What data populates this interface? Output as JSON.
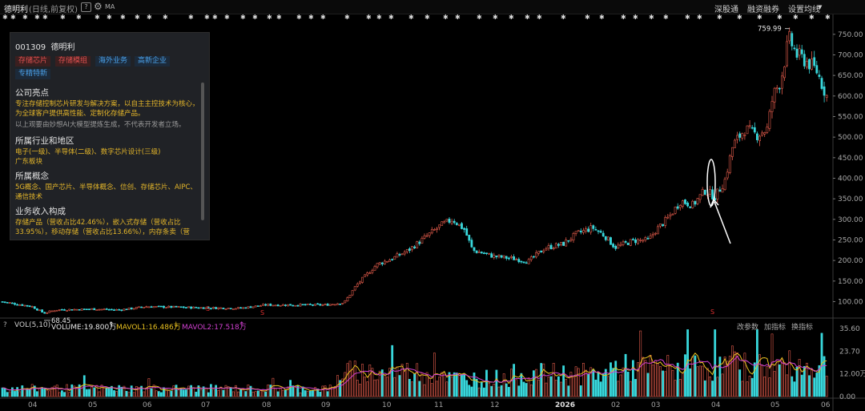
{
  "header": {
    "title": "德明利",
    "subtitle": "(日线,前复权)",
    "help_label": "?",
    "gear_icon": "gear-icon",
    "ma_label": "MA",
    "menu": [
      "深股通",
      "融资融券",
      "设置均线"
    ]
  },
  "panel": {
    "code": "001309",
    "name": "德明利",
    "tags": [
      {
        "label": "存储芯片",
        "color": "red"
      },
      {
        "label": "存储模组",
        "color": "red"
      },
      {
        "label": "海外业务",
        "color": "blue"
      },
      {
        "label": "高新企业",
        "color": "blue"
      },
      {
        "label": "专精特新",
        "color": "blue"
      }
    ],
    "highlight_title": "公司亮点",
    "highlight_text": "专注存储控制芯片研发与解决方案，以自主主控技术为核心，为全球客户提供高性能、定制化存储产品。",
    "disclaimer": "以上观要由妙想AI大模型提炼生成，不代表开发者立场。",
    "industry_title": "所属行业和地区",
    "industry_text": "电子(一级)、半导体(二级)、数字芯片设计(三级)",
    "region_text": "广东板块",
    "concept_title": "所属概念",
    "concept_text": "5G概念、国产芯片、半导体概念、信创、存储芯片、AIPC、通信技术",
    "revenue_title": "业务收入构成",
    "revenue_text": "存储产品（营收占比42.46%），嵌入式存储（营收占比33.95%），移动存储（营收占比13.66%），内存条卖（营"
  },
  "price_axis": [
    "750.00",
    "700.00",
    "650.00",
    "600.00",
    "550.00",
    "500.00",
    "450.00",
    "400.00",
    "350.00",
    "300.00",
    "250.00",
    "200.00",
    "150.00",
    "100.00"
  ],
  "annotations": {
    "high": "759.99",
    "low": "68.45",
    "s_marker": "S"
  },
  "volume": {
    "indicator": "VOL(5,10)",
    "volume": "VOLUME:19.800万",
    "up_arrow": "↑",
    "mavol1": "MAVOL1:16.486万",
    "down_arrow": "↓",
    "mavol2": "MAVOL2:17.518万",
    "up_arrow2": "↑",
    "actions": [
      "改参数",
      "加指标",
      "换指标"
    ],
    "axis": [
      "35.60",
      "23.70",
      "12.00万",
      "0.00"
    ]
  },
  "x_axis": [
    "04",
    "05",
    "06",
    "07",
    "08",
    "09",
    "10",
    "11",
    "12",
    "2026",
    "02",
    "03",
    "04",
    "05",
    "06"
  ],
  "colors": {
    "up": "#e05a4a",
    "down": "#38d8dc",
    "ma_yellow": "#e8c020",
    "ma_purple": "#d040d0",
    "arrow": "#ffffff"
  },
  "chart_data": {
    "type": "candlestick",
    "title": "德明利 (日线,前复权)",
    "y_range": [
      60,
      775
    ],
    "monthly_close_approx": [
      {
        "month": "04",
        "close": 90
      },
      {
        "month": "05",
        "close": 78
      },
      {
        "month": "06",
        "close": 85
      },
      {
        "month": "07",
        "close": 85
      },
      {
        "month": "08",
        "close": 88
      },
      {
        "month": "09",
        "close": 110
      },
      {
        "month": "10",
        "close": 230
      },
      {
        "month": "11",
        "close": 280
      },
      {
        "month": "12",
        "close": 205
      },
      {
        "month": "2026",
        "close": 280
      },
      {
        "month": "02",
        "close": 250
      },
      {
        "month": "03",
        "close": 360
      },
      {
        "month": "04",
        "close": 520
      },
      {
        "month": "05",
        "close": 700
      },
      {
        "month": "06",
        "close": 600
      }
    ],
    "high": 759.99,
    "low": 68.45
  }
}
